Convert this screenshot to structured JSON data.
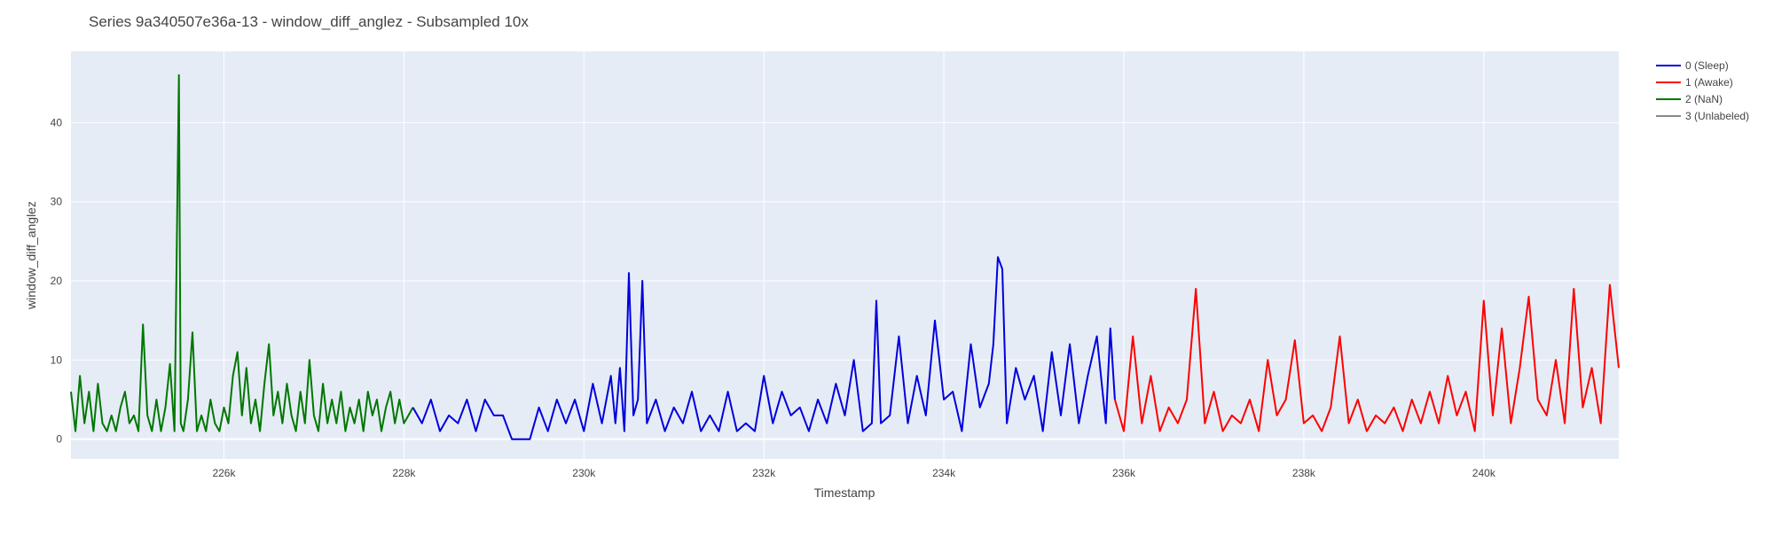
{
  "chart_data": {
    "type": "line",
    "title": "Series 9a340507e36a-13 - window_diff_anglez - Subsampled 10x",
    "xlabel": "Timestamp",
    "ylabel": "window_diff_anglez",
    "xlim": [
      224300,
      241500
    ],
    "ylim": [
      -2.5,
      49
    ],
    "xticks": [
      226000,
      228000,
      230000,
      232000,
      234000,
      236000,
      238000,
      240000
    ],
    "xtick_labels": [
      "226k",
      "228k",
      "230k",
      "232k",
      "234k",
      "236k",
      "238k",
      "240k"
    ],
    "yticks": [
      0,
      10,
      20,
      30,
      40
    ],
    "ytick_labels": [
      "0",
      "10",
      "20",
      "30",
      "40"
    ],
    "grid": true,
    "legend_position": "right",
    "legend": [
      {
        "name": "0 (Sleep)",
        "color": "#0000dd"
      },
      {
        "name": "1 (Awake)",
        "color": "#ff0000"
      },
      {
        "name": "2 (NaN)",
        "color": "#007700"
      },
      {
        "name": "3 (Unlabeled)",
        "color": "#888888"
      }
    ],
    "series": [
      {
        "name": "2 (NaN)",
        "color": "#007700",
        "x": [
          224300,
          224350,
          224400,
          224450,
          224500,
          224550,
          224600,
          224650,
          224700,
          224750,
          224800,
          224850,
          224900,
          224950,
          225000,
          225050,
          225100,
          225150,
          225200,
          225250,
          225300,
          225350,
          225400,
          225450,
          225500,
          225520,
          225550,
          225600,
          225650,
          225700,
          225750,
          225800,
          225850,
          225900,
          225950,
          226000,
          226050,
          226100,
          226150,
          226200,
          226250,
          226300,
          226350,
          226400,
          226450,
          226500,
          226550,
          226600,
          226650,
          226700,
          226750,
          226800,
          226850,
          226900,
          226950,
          227000,
          227050,
          227100,
          227150,
          227200,
          227250,
          227300,
          227350,
          227400,
          227450,
          227500,
          227550,
          227600,
          227650,
          227700,
          227750,
          227800,
          227850,
          227900,
          227950,
          228000,
          228050,
          228100
        ],
        "y": [
          6,
          1,
          8,
          2,
          6,
          1,
          7,
          2,
          1,
          3,
          1,
          4,
          6,
          2,
          3,
          1,
          14.5,
          3,
          1,
          5,
          1,
          4,
          9.5,
          1,
          46,
          2,
          1,
          5,
          13.5,
          1,
          3,
          1,
          5,
          2,
          1,
          4,
          2,
          8,
          11,
          3,
          9,
          2,
          5,
          1,
          7,
          12,
          3,
          6,
          2,
          7,
          3,
          1,
          6,
          2,
          10,
          3,
          1,
          7,
          2,
          5,
          2,
          6,
          1,
          4,
          2,
          5,
          1,
          6,
          3,
          5,
          1,
          4,
          6,
          2,
          5,
          2,
          3,
          4
        ]
      },
      {
        "name": "0 (Sleep)",
        "color": "#0000dd",
        "x": [
          228100,
          228200,
          228300,
          228400,
          228500,
          228600,
          228700,
          228800,
          228900,
          229000,
          229100,
          229200,
          229300,
          229400,
          229500,
          229600,
          229700,
          229800,
          229900,
          230000,
          230100,
          230200,
          230300,
          230350,
          230400,
          230450,
          230500,
          230550,
          230600,
          230650,
          230700,
          230800,
          230900,
          231000,
          231100,
          231200,
          231300,
          231400,
          231500,
          231600,
          231700,
          231800,
          231900,
          232000,
          232100,
          232200,
          232300,
          232400,
          232500,
          232600,
          232700,
          232800,
          232900,
          233000,
          233100,
          233200,
          233250,
          233300,
          233400,
          233500,
          233600,
          233700,
          233800,
          233900,
          234000,
          234100,
          234200,
          234300,
          234400,
          234500,
          234550,
          234600,
          234650,
          234700,
          234800,
          234900,
          235000,
          235100,
          235200,
          235300,
          235400,
          235500,
          235600,
          235700,
          235800,
          235850,
          235900
        ],
        "y": [
          4,
          2,
          5,
          1,
          3,
          2,
          5,
          1,
          5,
          3,
          3,
          0,
          0,
          0,
          4,
          1,
          5,
          2,
          5,
          1,
          7,
          2,
          8,
          2,
          9,
          1,
          21,
          3,
          5,
          20,
          2,
          5,
          1,
          4,
          2,
          6,
          1,
          3,
          1,
          6,
          1,
          2,
          1,
          8,
          2,
          6,
          3,
          4,
          1,
          5,
          2,
          7,
          3,
          10,
          1,
          2,
          17.5,
          2,
          3,
          13,
          2,
          8,
          3,
          15,
          5,
          6,
          1,
          12,
          4,
          7,
          12,
          23,
          21.5,
          2,
          9,
          5,
          8,
          1,
          11,
          3,
          12,
          2,
          8,
          13,
          2,
          14,
          5
        ]
      },
      {
        "name": "1 (Awake)",
        "color": "#ff0000",
        "x": [
          235900,
          236000,
          236100,
          236200,
          236300,
          236400,
          236500,
          236600,
          236700,
          236800,
          236900,
          237000,
          237100,
          237200,
          237300,
          237400,
          237500,
          237600,
          237700,
          237800,
          237900,
          238000,
          238100,
          238200,
          238300,
          238400,
          238500,
          238600,
          238700,
          238800,
          238900,
          239000,
          239100,
          239200,
          239300,
          239400,
          239500,
          239600,
          239700,
          239800,
          239900,
          240000,
          240100,
          240200,
          240300,
          240400,
          240500,
          240600,
          240700,
          240800,
          240900,
          241000,
          241100,
          241200,
          241300,
          241400,
          241500
        ],
        "y": [
          5,
          1,
          13,
          2,
          8,
          1,
          4,
          2,
          5,
          19,
          2,
          6,
          1,
          3,
          2,
          5,
          1,
          10,
          3,
          5,
          12.5,
          2,
          3,
          1,
          4,
          13,
          2,
          5,
          1,
          3,
          2,
          4,
          1,
          5,
          2,
          6,
          2,
          8,
          3,
          6,
          1,
          17.5,
          3,
          14,
          2,
          9,
          18,
          5,
          3,
          10,
          2,
          19,
          4,
          9,
          2,
          19.5,
          9
        ]
      }
    ]
  }
}
